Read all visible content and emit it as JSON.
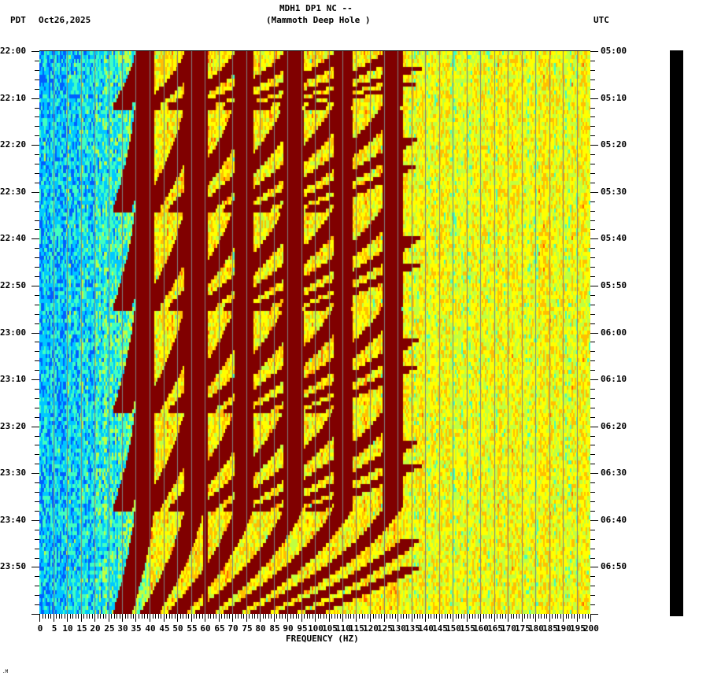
{
  "header": {
    "station": "MDH1 DP1 NC --",
    "location": "(Mammoth Deep Hole )",
    "left_tz": "PDT",
    "date": "Oct26,2025",
    "right_tz": "UTC"
  },
  "footer": {
    "mark": ".M"
  },
  "colors": {
    "background": "#ffffff",
    "axis": "#000000",
    "gridline": "#808080",
    "colormap": [
      "#0060ff",
      "#00c8ff",
      "#40ffc0",
      "#c0ff40",
      "#ffff00",
      "#ffc000",
      "#ff6000",
      "#ff0000",
      "#800000"
    ]
  },
  "chart_data": {
    "type": "heatmap",
    "title": "MDH1 DP1 NC -- (Mammoth Deep Hole )",
    "xlabel": "FREQUENCY (HZ)",
    "ylabel_left": "PDT",
    "ylabel_right": "UTC",
    "date": "Oct26,2025",
    "xlim": [
      0,
      200
    ],
    "x_ticks": [
      0,
      5,
      10,
      15,
      20,
      25,
      30,
      35,
      40,
      45,
      50,
      55,
      60,
      65,
      70,
      75,
      80,
      85,
      90,
      95,
      100,
      105,
      110,
      115,
      120,
      125,
      130,
      135,
      140,
      145,
      150,
      155,
      160,
      165,
      170,
      175,
      180,
      185,
      190,
      195,
      200
    ],
    "x_minor_step": 1,
    "y_ticks_left": [
      "22:00",
      "22:10",
      "22:20",
      "22:30",
      "22:40",
      "22:50",
      "23:00",
      "23:10",
      "23:20",
      "23:30",
      "23:40",
      "23:50"
    ],
    "y_ticks_right": [
      "05:00",
      "05:10",
      "05:20",
      "05:30",
      "05:40",
      "05:50",
      "06:00",
      "06:10",
      "06:20",
      "06:30",
      "06:40",
      "06:50"
    ],
    "y_minor_step_minutes": 2,
    "time_span_minutes": 120,
    "grid": "vertical lines every 5 Hz (gray)",
    "features": {
      "low_freq_band_hz": [
        0,
        25
      ],
      "low_freq_level": "low (blue/cyan)",
      "high_freq_band_hz": [
        130,
        200
      ],
      "high_freq_level": "moderate (yellow/orange/red)",
      "persistent_line_hz": 60,
      "chirp_events_start_pdt": [
        "22:00",
        "22:11",
        "22:33",
        "22:54",
        "23:16",
        "23:37"
      ],
      "chirp_description": "repeating curved harmonic bands (dark red) sweeping from ~20-30 Hz upward to ~130 Hz, roughly every 21 minutes"
    }
  }
}
